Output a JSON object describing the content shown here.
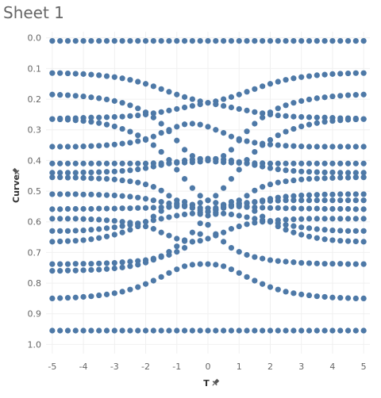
{
  "sheet": {
    "title": "Sheet 1"
  },
  "axes": {
    "x_title": "T",
    "y_title": "Curve",
    "pin_icon": "pin-icon"
  },
  "colors": {
    "marks": "#4e79a7",
    "grid": "#f0f0f0",
    "text": "#666666"
  },
  "chart_data": {
    "type": "scatter",
    "title": "Sheet 1",
    "xlabel": "T",
    "ylabel": "Curve",
    "xlim": [
      -5.2,
      5.2
    ],
    "ylim": [
      -0.02,
      1.03
    ],
    "y_reversed": true,
    "grid": true,
    "x_ticks": [
      "-5",
      "-4",
      "-3",
      "-2",
      "-1",
      "0",
      "1",
      "2",
      "3",
      "4",
      "5"
    ],
    "y_ticks": [
      "0.0",
      "0.1",
      "0.2",
      "0.3",
      "0.4",
      "0.5",
      "0.6",
      "0.7",
      "0.8",
      "0.9",
      "1.0"
    ],
    "x_tick_values": [
      -5,
      -4,
      -3,
      -2,
      -1,
      0,
      1,
      2,
      3,
      4,
      5
    ],
    "y_tick_values": [
      0,
      0.1,
      0.2,
      0.3,
      0.4,
      0.5,
      0.6,
      0.7,
      0.8,
      0.9,
      1.0
    ],
    "x": [
      -5.0,
      -4.75,
      -4.5,
      -4.25,
      -4.0,
      -3.75,
      -3.5,
      -3.25,
      -3.0,
      -2.75,
      -2.5,
      -2.25,
      -2.0,
      -1.75,
      -1.5,
      -1.25,
      -1.0,
      -0.75,
      -0.5,
      -0.25,
      0.0,
      0.25,
      0.5,
      0.75,
      1.0,
      1.25,
      1.5,
      1.75,
      2.0,
      2.25,
      2.5,
      2.75,
      3.0,
      3.25,
      3.5,
      3.75,
      4.0,
      4.25,
      4.5,
      4.75,
      5.0
    ],
    "series": [
      {
        "values": [
          0.01,
          0.01,
          0.01,
          0.01,
          0.01,
          0.01,
          0.01,
          0.01,
          0.01,
          0.01,
          0.01,
          0.01,
          0.01,
          0.01,
          0.01,
          0.01,
          0.01,
          0.01,
          0.01,
          0.01,
          0.01,
          0.01,
          0.01,
          0.01,
          0.01,
          0.01,
          0.01,
          0.01,
          0.01,
          0.01,
          0.01,
          0.01,
          0.01,
          0.01,
          0.01,
          0.01,
          0.01,
          0.01,
          0.01,
          0.01,
          0.01
        ]
      },
      {
        "values": [
          0.115,
          0.115,
          0.116,
          0.117,
          0.118,
          0.12,
          0.122,
          0.125,
          0.128,
          0.132,
          0.137,
          0.143,
          0.15,
          0.158,
          0.167,
          0.176,
          0.185,
          0.193,
          0.2,
          0.207,
          0.212,
          0.217,
          0.222,
          0.227,
          0.232,
          0.237,
          0.242,
          0.246,
          0.25,
          0.253,
          0.255,
          0.257,
          0.258,
          0.259,
          0.26,
          0.26,
          0.261,
          0.262,
          0.262,
          0.263,
          0.265
        ]
      },
      {
        "values": [
          0.265,
          0.263,
          0.262,
          0.262,
          0.261,
          0.26,
          0.26,
          0.259,
          0.258,
          0.257,
          0.255,
          0.253,
          0.25,
          0.246,
          0.242,
          0.237,
          0.232,
          0.227,
          0.222,
          0.217,
          0.212,
          0.207,
          0.2,
          0.193,
          0.185,
          0.176,
          0.167,
          0.158,
          0.15,
          0.143,
          0.137,
          0.132,
          0.128,
          0.125,
          0.122,
          0.12,
          0.118,
          0.117,
          0.116,
          0.115,
          0.115
        ]
      },
      {
        "values": [
          0.185,
          0.186,
          0.187,
          0.189,
          0.191,
          0.194,
          0.197,
          0.201,
          0.206,
          0.212,
          0.22,
          0.23,
          0.243,
          0.26,
          0.28,
          0.305,
          0.335,
          0.365,
          0.385,
          0.395,
          0.4,
          0.404,
          0.406,
          0.407,
          0.408,
          0.408,
          0.409,
          0.409,
          0.41,
          0.41,
          0.41,
          0.41,
          0.41,
          0.41,
          0.41,
          0.41,
          0.41,
          0.41,
          0.41,
          0.41,
          0.41
        ]
      },
      {
        "values": [
          0.41,
          0.41,
          0.41,
          0.41,
          0.41,
          0.41,
          0.41,
          0.41,
          0.41,
          0.41,
          0.41,
          0.41,
          0.41,
          0.409,
          0.409,
          0.408,
          0.408,
          0.407,
          0.406,
          0.404,
          0.4,
          0.395,
          0.385,
          0.365,
          0.335,
          0.305,
          0.28,
          0.26,
          0.243,
          0.23,
          0.22,
          0.212,
          0.206,
          0.201,
          0.197,
          0.194,
          0.191,
          0.189,
          0.187,
          0.186,
          0.185
        ]
      },
      {
        "values": [
          0.265,
          0.266,
          0.267,
          0.269,
          0.271,
          0.274,
          0.278,
          0.283,
          0.289,
          0.297,
          0.306,
          0.318,
          0.333,
          0.35,
          0.372,
          0.398,
          0.43,
          0.46,
          0.49,
          0.515,
          0.53,
          0.538,
          0.544,
          0.548,
          0.55,
          0.552,
          0.553,
          0.554,
          0.555,
          0.555,
          0.556,
          0.556,
          0.557,
          0.557,
          0.557,
          0.558,
          0.558,
          0.558,
          0.558,
          0.559,
          0.559
        ]
      },
      {
        "values": [
          0.559,
          0.559,
          0.558,
          0.558,
          0.558,
          0.558,
          0.557,
          0.557,
          0.557,
          0.556,
          0.556,
          0.555,
          0.555,
          0.554,
          0.553,
          0.552,
          0.55,
          0.548,
          0.544,
          0.538,
          0.53,
          0.515,
          0.49,
          0.46,
          0.43,
          0.398,
          0.372,
          0.35,
          0.333,
          0.318,
          0.306,
          0.297,
          0.289,
          0.283,
          0.278,
          0.274,
          0.271,
          0.269,
          0.267,
          0.266,
          0.265
        ]
      },
      {
        "values": [
          0.355,
          0.355,
          0.355,
          0.355,
          0.354,
          0.353,
          0.352,
          0.35,
          0.348,
          0.345,
          0.342,
          0.337,
          0.33,
          0.322,
          0.31,
          0.3,
          0.29,
          0.282,
          0.28,
          0.283,
          0.29,
          0.3,
          0.31,
          0.322,
          0.33,
          0.337,
          0.342,
          0.345,
          0.348,
          0.35,
          0.352,
          0.353,
          0.354,
          0.355,
          0.355,
          0.355,
          0.355,
          0.355,
          0.355,
          0.355,
          0.355
        ]
      },
      {
        "values": [
          0.44,
          0.44,
          0.44,
          0.44,
          0.439,
          0.439,
          0.438,
          0.437,
          0.436,
          0.434,
          0.432,
          0.429,
          0.425,
          0.42,
          0.415,
          0.41,
          0.405,
          0.4,
          0.397,
          0.395,
          0.394,
          0.395,
          0.397,
          0.4,
          0.405,
          0.41,
          0.415,
          0.42,
          0.425,
          0.429,
          0.432,
          0.434,
          0.436,
          0.437,
          0.438,
          0.439,
          0.439,
          0.44,
          0.44,
          0.44,
          0.44
        ]
      },
      {
        "values": [
          0.51,
          0.51,
          0.51,
          0.51,
          0.511,
          0.511,
          0.512,
          0.513,
          0.514,
          0.516,
          0.518,
          0.521,
          0.525,
          0.53,
          0.535,
          0.54,
          0.545,
          0.55,
          0.553,
          0.555,
          0.556,
          0.555,
          0.553,
          0.55,
          0.545,
          0.54,
          0.535,
          0.53,
          0.525,
          0.521,
          0.518,
          0.516,
          0.514,
          0.513,
          0.512,
          0.511,
          0.511,
          0.51,
          0.51,
          0.51,
          0.51
        ]
      },
      {
        "values": [
          0.59,
          0.59,
          0.59,
          0.59,
          0.591,
          0.592,
          0.593,
          0.595,
          0.597,
          0.6,
          0.603,
          0.608,
          0.615,
          0.623,
          0.635,
          0.645,
          0.655,
          0.663,
          0.665,
          0.662,
          0.655,
          0.645,
          0.635,
          0.623,
          0.615,
          0.608,
          0.603,
          0.6,
          0.597,
          0.595,
          0.593,
          0.592,
          0.591,
          0.59,
          0.59,
          0.59,
          0.59,
          0.59,
          0.59,
          0.59,
          0.59
        ]
      },
      {
        "values": [
          0.455,
          0.455,
          0.456,
          0.456,
          0.457,
          0.458,
          0.459,
          0.46,
          0.462,
          0.465,
          0.468,
          0.472,
          0.478,
          0.486,
          0.498,
          0.515,
          0.53,
          0.545,
          0.555,
          0.562,
          0.567,
          0.57,
          0.573,
          0.576,
          0.58,
          0.585,
          0.59,
          0.595,
          0.6,
          0.605,
          0.61,
          0.614,
          0.618,
          0.621,
          0.624,
          0.626,
          0.628,
          0.629,
          0.63,
          0.63,
          0.63
        ]
      },
      {
        "values": [
          0.63,
          0.63,
          0.63,
          0.629,
          0.628,
          0.626,
          0.624,
          0.621,
          0.618,
          0.614,
          0.61,
          0.605,
          0.6,
          0.595,
          0.59,
          0.585,
          0.58,
          0.576,
          0.573,
          0.57,
          0.567,
          0.562,
          0.555,
          0.545,
          0.53,
          0.515,
          0.498,
          0.486,
          0.478,
          0.472,
          0.468,
          0.465,
          0.462,
          0.46,
          0.459,
          0.458,
          0.457,
          0.456,
          0.456,
          0.455,
          0.455
        ]
      },
      {
        "values": [
          0.665,
          0.664,
          0.663,
          0.662,
          0.66,
          0.657,
          0.653,
          0.648,
          0.642,
          0.635,
          0.626,
          0.615,
          0.6,
          0.583,
          0.565,
          0.55,
          0.54,
          0.535,
          0.545,
          0.575,
          0.61,
          0.64,
          0.665,
          0.685,
          0.698,
          0.708,
          0.715,
          0.72,
          0.725,
          0.728,
          0.73,
          0.732,
          0.734,
          0.735,
          0.736,
          0.737,
          0.737,
          0.737,
          0.738,
          0.738,
          0.738
        ]
      },
      {
        "values": [
          0.738,
          0.738,
          0.738,
          0.737,
          0.737,
          0.737,
          0.736,
          0.735,
          0.734,
          0.732,
          0.73,
          0.728,
          0.725,
          0.72,
          0.715,
          0.708,
          0.698,
          0.685,
          0.665,
          0.64,
          0.61,
          0.575,
          0.545,
          0.535,
          0.54,
          0.55,
          0.565,
          0.583,
          0.6,
          0.615,
          0.626,
          0.635,
          0.642,
          0.648,
          0.653,
          0.657,
          0.66,
          0.662,
          0.663,
          0.664,
          0.665
        ]
      },
      {
        "values": [
          0.76,
          0.76,
          0.759,
          0.759,
          0.758,
          0.757,
          0.756,
          0.754,
          0.752,
          0.749,
          0.745,
          0.74,
          0.733,
          0.724,
          0.712,
          0.698,
          0.68,
          0.66,
          0.635,
          0.605,
          0.58,
          0.56,
          0.55,
          0.545,
          0.54,
          0.538,
          0.536,
          0.534,
          0.532,
          0.531,
          0.53,
          0.53,
          0.53,
          0.53,
          0.53,
          0.53,
          0.53,
          0.53,
          0.53,
          0.53,
          0.53
        ]
      },
      {
        "values": [
          0.85,
          0.849,
          0.848,
          0.847,
          0.845,
          0.843,
          0.84,
          0.837,
          0.833,
          0.828,
          0.821,
          0.813,
          0.803,
          0.792,
          0.78,
          0.767,
          0.755,
          0.745,
          0.74,
          0.738,
          0.738,
          0.74,
          0.745,
          0.755,
          0.767,
          0.78,
          0.792,
          0.803,
          0.813,
          0.821,
          0.828,
          0.833,
          0.837,
          0.84,
          0.843,
          0.845,
          0.847,
          0.848,
          0.849,
          0.85,
          0.85
        ]
      },
      {
        "values": [
          0.955,
          0.955,
          0.955,
          0.955,
          0.955,
          0.955,
          0.955,
          0.955,
          0.955,
          0.955,
          0.955,
          0.955,
          0.955,
          0.955,
          0.955,
          0.955,
          0.955,
          0.955,
          0.955,
          0.955,
          0.955,
          0.955,
          0.955,
          0.955,
          0.955,
          0.955,
          0.955,
          0.955,
          0.955,
          0.955,
          0.955,
          0.955,
          0.955,
          0.955,
          0.955,
          0.955,
          0.955,
          0.955,
          0.955,
          0.955,
          0.955
        ]
      }
    ]
  }
}
